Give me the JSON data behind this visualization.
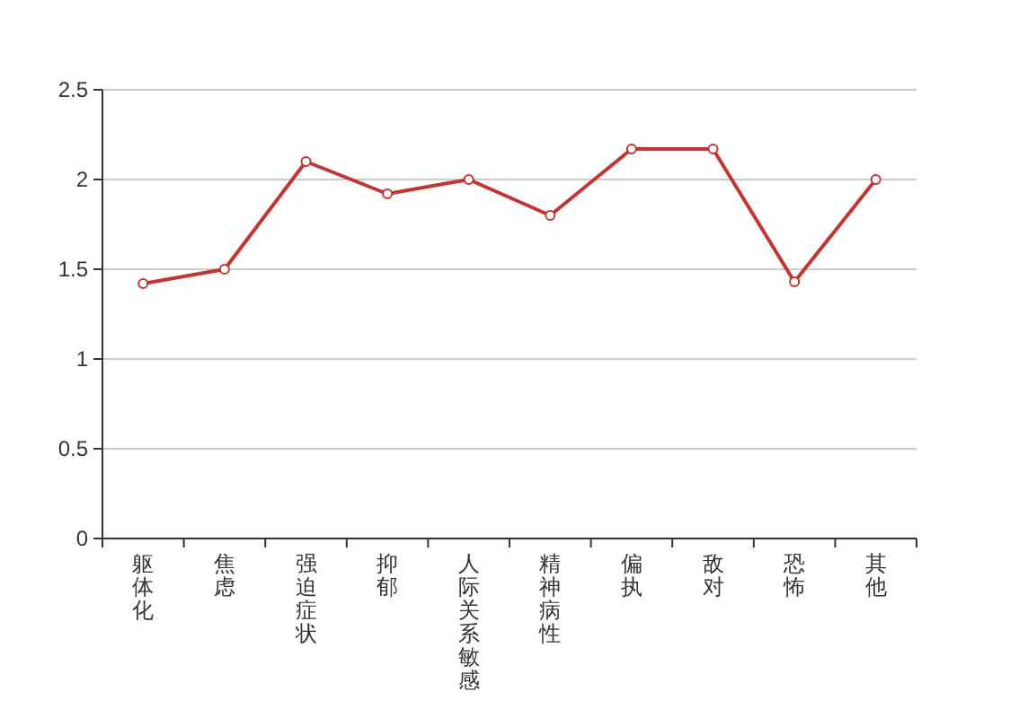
{
  "chart_data": {
    "type": "line",
    "categories": [
      "躯体化",
      "焦虑",
      "强迫症状",
      "抑郁",
      "人际关系敏感",
      "精神病性",
      "偏执",
      "敌对",
      "恐怖",
      "其他"
    ],
    "series": [
      {
        "color": "#c23531",
        "values": [
          1.42,
          1.5,
          2.1,
          1.92,
          2.0,
          1.8,
          2.17,
          2.17,
          1.43,
          2.0
        ]
      }
    ],
    "ylim": [
      0,
      2.5
    ],
    "yticks": [
      0,
      0.5,
      1,
      1.5,
      2,
      2.5
    ],
    "grid": "y",
    "marker": "circle",
    "line_style": "solid"
  }
}
